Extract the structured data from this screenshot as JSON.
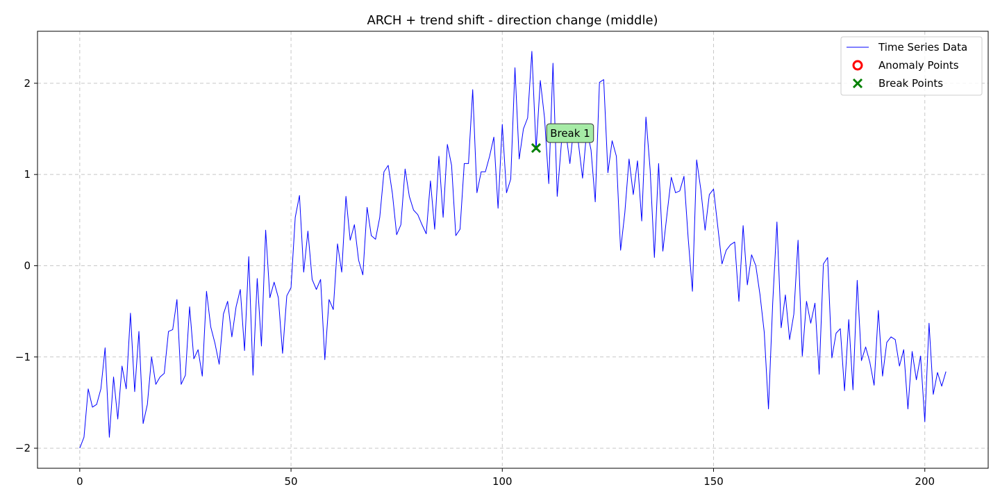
{
  "chart_data": {
    "type": "line",
    "title": "ARCH + trend shift - direction change (middle)",
    "xlabel": "",
    "ylabel": "",
    "xlim": [
      -10,
      215
    ],
    "ylim": [
      -2.22,
      2.57
    ],
    "xticks": [
      0,
      50,
      100,
      150,
      200
    ],
    "yticks": [
      -2,
      -1,
      0,
      1,
      2
    ],
    "xtick_labels": [
      "0",
      "50",
      "100",
      "150",
      "200"
    ],
    "ytick_labels": [
      "−2",
      "−1",
      "0",
      "1",
      "2"
    ],
    "grid": true,
    "legend_position": "top-right",
    "colors": {
      "line": "#0000ff",
      "anomaly": "#ff0000",
      "break": "#008000",
      "annotation_fill": "#a6eba6"
    },
    "legend": [
      {
        "label": "Time Series Data",
        "kind": "line"
      },
      {
        "label": "Anomaly Points",
        "kind": "circle"
      },
      {
        "label": "Break Points",
        "kind": "x"
      }
    ],
    "series": [
      {
        "name": "Time Series Data",
        "x": [
          0,
          1,
          2,
          3,
          4,
          5,
          6,
          7,
          8,
          9,
          10,
          11,
          12,
          13,
          14,
          15,
          16,
          17,
          18,
          19,
          20,
          21,
          22,
          23,
          24,
          25,
          26,
          27,
          28,
          29,
          30,
          31,
          32,
          33,
          34,
          35,
          36,
          37,
          38,
          39,
          40,
          41,
          42,
          43,
          44,
          45,
          46,
          47,
          48,
          49,
          50,
          51,
          52,
          53,
          54,
          55,
          56,
          57,
          58,
          59,
          60,
          61,
          62,
          63,
          64,
          65,
          66,
          67,
          68,
          69,
          70,
          71,
          72,
          73,
          74,
          75,
          76,
          77,
          78,
          79,
          80,
          81,
          82,
          83,
          84,
          85,
          86,
          87,
          88,
          89,
          90,
          91,
          92,
          93,
          94,
          95,
          96,
          97,
          98,
          99,
          100,
          101,
          102,
          103,
          104,
          105,
          106,
          107,
          108,
          109,
          110,
          111,
          112,
          113,
          114,
          115,
          116,
          117,
          118,
          119,
          120,
          121,
          122,
          123,
          124,
          125,
          126,
          127,
          128,
          129,
          130,
          131,
          132,
          133,
          134,
          135,
          136,
          137,
          138,
          139,
          140,
          141,
          142,
          143,
          144,
          145,
          146,
          147,
          148,
          149,
          150,
          151,
          152,
          153,
          154,
          155,
          156,
          157,
          158,
          159,
          160,
          161,
          162,
          163,
          164,
          165,
          166,
          167,
          168,
          169,
          170,
          171,
          172,
          173,
          174,
          175,
          176,
          177,
          178,
          179,
          180,
          181,
          182,
          183,
          184,
          185,
          186,
          187,
          188,
          189,
          190,
          191,
          192,
          193,
          194,
          195,
          196,
          197,
          198,
          199,
          200,
          201,
          202,
          203,
          204,
          205
        ],
        "y": [
          -2.0,
          -1.88,
          -1.35,
          -1.55,
          -1.52,
          -1.35,
          -0.9,
          -1.88,
          -1.22,
          -1.68,
          -1.1,
          -1.35,
          -0.52,
          -1.38,
          -0.72,
          -1.73,
          -1.52,
          -1.0,
          -1.3,
          -1.22,
          -1.18,
          -0.72,
          -0.7,
          -0.37,
          -1.3,
          -1.2,
          -0.45,
          -1.02,
          -0.92,
          -1.21,
          -0.28,
          -0.67,
          -0.85,
          -1.08,
          -0.53,
          -0.39,
          -0.78,
          -0.45,
          -0.26,
          -0.93,
          0.1,
          -1.2,
          -0.14,
          -0.88,
          0.39,
          -0.35,
          -0.18,
          -0.35,
          -0.96,
          -0.33,
          -0.24,
          0.53,
          0.77,
          -0.07,
          0.38,
          -0.15,
          -0.26,
          -0.15,
          -1.03,
          -0.37,
          -0.48,
          0.24,
          -0.07,
          0.76,
          0.28,
          0.45,
          0.06,
          -0.1,
          0.64,
          0.33,
          0.29,
          0.53,
          1.03,
          1.1,
          0.79,
          0.34,
          0.45,
          1.06,
          0.76,
          0.61,
          0.56,
          0.45,
          0.35,
          0.93,
          0.4,
          1.2,
          0.53,
          1.33,
          1.1,
          0.33,
          0.4,
          1.12,
          1.12,
          1.93,
          0.8,
          1.03,
          1.03,
          1.2,
          1.41,
          0.63,
          1.55,
          0.8,
          0.95,
          2.17,
          1.17,
          1.5,
          1.62,
          2.35,
          1.27,
          2.03,
          1.62,
          0.9,
          2.22,
          0.76,
          1.35,
          1.48,
          1.12,
          1.55,
          1.35,
          0.96,
          1.49,
          1.27,
          0.7,
          2.01,
          2.04,
          1.02,
          1.37,
          1.2,
          0.17,
          0.58,
          1.17,
          0.78,
          1.15,
          0.49,
          1.63,
          1.05,
          0.09,
          1.12,
          0.16,
          0.57,
          0.97,
          0.8,
          0.82,
          0.98,
          0.3,
          -0.28,
          1.16,
          0.83,
          0.39,
          0.78,
          0.84,
          0.43,
          0.02,
          0.17,
          0.23,
          0.26,
          -0.39,
          0.44,
          -0.21,
          0.12,
          0.0,
          -0.32,
          -0.73,
          -1.57,
          -0.41,
          0.48,
          -0.68,
          -0.32,
          -0.81,
          -0.53,
          0.28,
          -0.99,
          -0.39,
          -0.63,
          -0.41,
          -1.19,
          0.02,
          0.09,
          -1.01,
          -0.74,
          -0.69,
          -1.37,
          -0.59,
          -1.36,
          -0.16,
          -1.04,
          -0.89,
          -1.06,
          -1.31,
          -0.49,
          -1.21,
          -0.84,
          -0.78,
          -0.81,
          -1.1,
          -0.92,
          -1.57,
          -0.94,
          -1.25,
          -0.99,
          -1.71,
          -0.63,
          -1.41,
          -1.17,
          -1.32,
          -1.16
        ]
      }
    ],
    "anomaly_points": [],
    "break_points": [
      {
        "x": 108,
        "y": 1.29,
        "label": "Break 1"
      }
    ]
  }
}
